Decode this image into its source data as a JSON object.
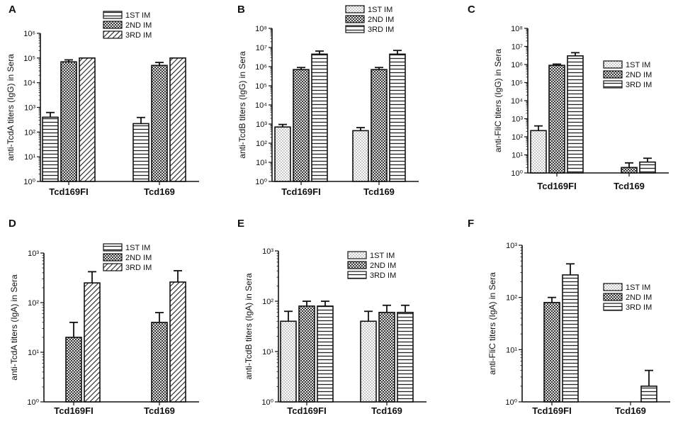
{
  "figure": {
    "panels": [
      "A",
      "B",
      "C",
      "D",
      "E",
      "F"
    ]
  },
  "chart_data": [
    {
      "panel": "A",
      "type": "bar",
      "scale": "log10",
      "ylabel": "anti-TcdA titers (IgG) in Sera",
      "ylim": [
        1,
        1000000
      ],
      "categories": [
        "Tcd169FI",
        "Tcd169"
      ],
      "legend_position": "top-center",
      "series": [
        {
          "name": "1ST IM",
          "pattern": "hlines",
          "values": [
            400,
            220
          ],
          "errors": [
            220,
            170
          ]
        },
        {
          "name": "2ND IM",
          "pattern": "checker",
          "values": [
            70000,
            50000
          ],
          "errors": [
            14000,
            16000
          ]
        },
        {
          "name": "3RD IM",
          "pattern": "diag",
          "values": [
            100000,
            100000
          ],
          "errors": [
            0,
            0
          ]
        }
      ]
    },
    {
      "panel": "B",
      "type": "bar",
      "scale": "log10",
      "ylabel": "anti-TcdB titers (IgG) in Sera",
      "ylim": [
        1,
        100000000
      ],
      "categories": [
        "Tcd169FI",
        "Tcd169"
      ],
      "legend_position": "top-center",
      "series": [
        {
          "name": "1ST IM",
          "pattern": "dots",
          "values": [
            700,
            450
          ],
          "errors": [
            250,
            200
          ]
        },
        {
          "name": "2ND IM",
          "pattern": "checker",
          "values": [
            700000,
            700000
          ],
          "errors": [
            200000,
            200000
          ]
        },
        {
          "name": "3RD IM",
          "pattern": "hlines",
          "values": [
            4500000,
            4500000
          ],
          "errors": [
            2000000,
            2500000
          ]
        }
      ]
    },
    {
      "panel": "C",
      "type": "bar",
      "scale": "log10",
      "ylabel": "anti-FliC titers (IgG) in Sera",
      "ylim": [
        1,
        100000000
      ],
      "categories": [
        "Tcd169FI",
        "Tcd169"
      ],
      "legend_position": "middle-right",
      "series": [
        {
          "name": "1ST IM",
          "pattern": "dots",
          "values": [
            220,
            0
          ],
          "errors": [
            180,
            0
          ]
        },
        {
          "name": "2ND IM",
          "pattern": "checker",
          "values": [
            900000,
            2
          ],
          "errors": [
            150000,
            1.6
          ]
        },
        {
          "name": "3RD IM",
          "pattern": "hlines",
          "values": [
            3000000,
            4
          ],
          "errors": [
            1500000,
            2.5
          ]
        }
      ]
    },
    {
      "panel": "D",
      "type": "bar",
      "scale": "log10",
      "ylabel": "anti-TcdA titers (IgA) in Sera",
      "ylim": [
        1,
        1000
      ],
      "categories": [
        "Tcd169FI",
        "Tcd169"
      ],
      "legend_position": "top-center",
      "series": [
        {
          "name": "1ST IM",
          "pattern": "hlines",
          "values": [
            0,
            0
          ],
          "errors": [
            0,
            0
          ]
        },
        {
          "name": "2ND IM",
          "pattern": "checker",
          "values": [
            20,
            40
          ],
          "errors": [
            20,
            23
          ]
        },
        {
          "name": "3RD IM",
          "pattern": "diag",
          "values": [
            250,
            260
          ],
          "errors": [
            170,
            180
          ]
        }
      ]
    },
    {
      "panel": "E",
      "type": "bar",
      "scale": "log10",
      "ylabel": "anti-TcdB titers (IgA) in Sera",
      "ylim": [
        1,
        1000
      ],
      "categories": [
        "Tcd169FI",
        "Tcd169"
      ],
      "legend_position": "top-center",
      "series": [
        {
          "name": "1ST IM",
          "pattern": "dots",
          "values": [
            40,
            40
          ],
          "errors": [
            23,
            23
          ]
        },
        {
          "name": "2ND IM",
          "pattern": "checker",
          "values": [
            80,
            60
          ],
          "errors": [
            20,
            23
          ]
        },
        {
          "name": "3RD IM",
          "pattern": "hlines",
          "values": [
            80,
            60
          ],
          "errors": [
            20,
            23
          ]
        }
      ]
    },
    {
      "panel": "F",
      "type": "bar",
      "scale": "log10",
      "ylabel": "anti-FliC titers (IgA) in Sera",
      "ylim": [
        1,
        1000
      ],
      "categories": [
        "Tcd169FI",
        "Tcd169"
      ],
      "legend_position": "middle-right",
      "series": [
        {
          "name": "1ST IM",
          "pattern": "dots",
          "values": [
            0,
            0
          ],
          "errors": [
            0,
            0
          ]
        },
        {
          "name": "2ND IM",
          "pattern": "checker",
          "values": [
            80,
            0
          ],
          "errors": [
            20,
            0
          ]
        },
        {
          "name": "3RD IM",
          "pattern": "hlines",
          "values": [
            270,
            2
          ],
          "errors": [
            170,
            2
          ]
        }
      ]
    }
  ]
}
